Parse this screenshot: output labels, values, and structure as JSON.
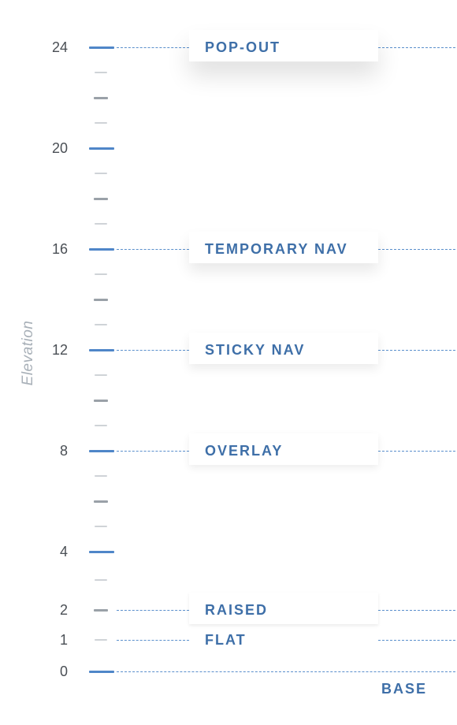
{
  "chart_data": {
    "type": "diagram",
    "axis_title": "Elevation",
    "ticks": [
      {
        "value": "24",
        "level": 24
      },
      {
        "value": "20",
        "level": 20
      },
      {
        "value": "16",
        "level": 16
      },
      {
        "value": "12",
        "level": 12
      },
      {
        "value": "8",
        "level": 8
      },
      {
        "value": "4",
        "level": 4
      },
      {
        "value": "2",
        "level": 2
      },
      {
        "value": "1",
        "level": 1
      },
      {
        "value": "0",
        "level": 0
      }
    ],
    "levels": [
      {
        "name": "POP-OUT",
        "level": 24
      },
      {
        "name": "TEMPORARY NAV",
        "level": 16
      },
      {
        "name": "STICKY NAV",
        "level": 12
      },
      {
        "name": "OVERLAY",
        "level": 8
      },
      {
        "name": "RAISED",
        "level": 2
      },
      {
        "name": "FLAT",
        "level": 1
      }
    ],
    "base_label": "BASE",
    "colors": {
      "accent": "#4f86c8",
      "label": "#3e6fa8",
      "axis_title": "#a8b0b8"
    }
  }
}
